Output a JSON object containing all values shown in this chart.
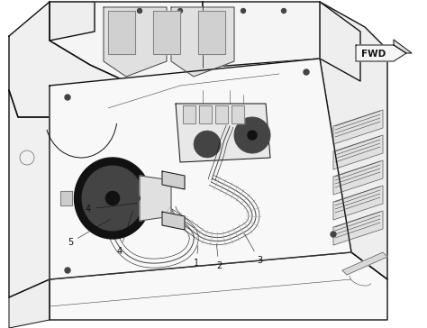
{
  "bg_color": "#ffffff",
  "line_color": "#444444",
  "dark_color": "#111111",
  "gray1": "#cccccc",
  "gray2": "#e8e8e8",
  "gray3": "#aaaaaa",
  "fwd_label": "FWD",
  "labels": [
    "1",
    "2",
    "3",
    "4",
    "5"
  ],
  "figsize": [
    4.74,
    3.64
  ],
  "dpi": 100
}
